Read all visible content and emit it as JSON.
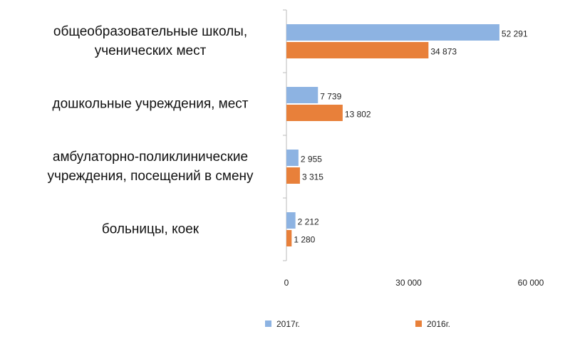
{
  "chart_data": {
    "type": "hbar",
    "categories": [
      "общеобразовательные школы,\nученических мест",
      "дошкольные учреждения, мест",
      "амбулаторно-поликлинические\nучреждения, посещений в смену",
      "больницы, коек"
    ],
    "series": [
      {
        "name": "2017г.",
        "color": "#8db3e2",
        "values": [
          52291,
          7739,
          2955,
          2212
        ],
        "value_labels": [
          "52 291",
          "7 739",
          "2 955",
          "2 212"
        ]
      },
      {
        "name": "2016г.",
        "color": "#e8803a",
        "values": [
          34873,
          13802,
          3315,
          1280
        ],
        "value_labels": [
          "34 873",
          "13 802",
          "3 315",
          "1 280"
        ]
      }
    ],
    "xlim": [
      0,
      60000
    ],
    "xticks": [
      0,
      {
        "value": 30000,
        "label": "30 000"
      },
      {
        "value": 60000,
        "label": "60 000"
      }
    ],
    "grid": false,
    "legend": "bottom"
  }
}
